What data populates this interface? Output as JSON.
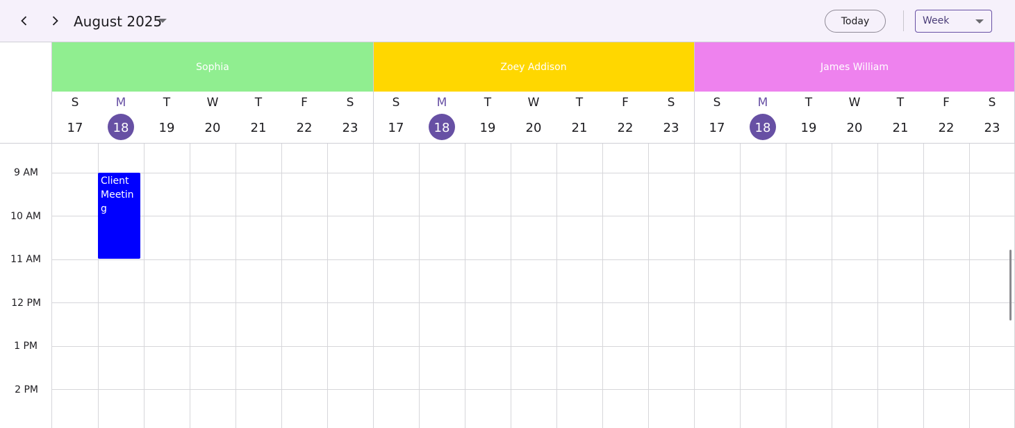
{
  "toolbar": {
    "prev_icon": "chevron-left-icon",
    "next_icon": "chevron-right-icon",
    "month_label": "August 2025",
    "today_label": "Today",
    "view_label": "Week"
  },
  "resources": [
    {
      "name": "Sophia",
      "color": "#90ee90"
    },
    {
      "name": "Zoey Addison",
      "color": "#ffd700"
    },
    {
      "name": "James William",
      "color": "#ee82ee"
    }
  ],
  "days": [
    {
      "letter": "S",
      "num": "17",
      "today": false
    },
    {
      "letter": "M",
      "num": "18",
      "today": true
    },
    {
      "letter": "T",
      "num": "19",
      "today": false
    },
    {
      "letter": "W",
      "num": "20",
      "today": false
    },
    {
      "letter": "T",
      "num": "21",
      "today": false
    },
    {
      "letter": "F",
      "num": "22",
      "today": false
    },
    {
      "letter": "S",
      "num": "23",
      "today": false
    }
  ],
  "time_labels": [
    "9 AM",
    "10 AM",
    "11 AM",
    "12 PM",
    "1 PM",
    "2 PM"
  ],
  "event": {
    "title": "Client Meeting",
    "color": "#0000ff"
  },
  "colors": {
    "accent": "#6750a4",
    "toolbar_bg": "#f6f1fb"
  }
}
